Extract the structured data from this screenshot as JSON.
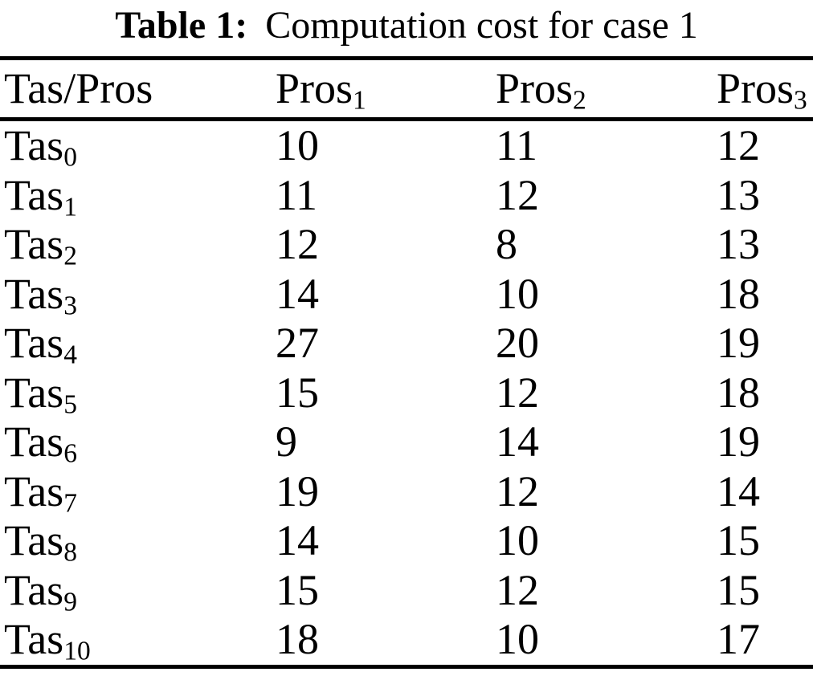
{
  "title": {
    "label": "Table 1:",
    "caption": "Computation cost for case 1"
  },
  "colors": {
    "text": "#000000",
    "background": "#ffffff",
    "rule": "#000000"
  },
  "table": {
    "columns": [
      {
        "base": "Tas/Pros",
        "sub": ""
      },
      {
        "base": "Pros",
        "sub": "1"
      },
      {
        "base": "Pros",
        "sub": "2"
      },
      {
        "base": "Pros",
        "sub": "3"
      }
    ],
    "rows": [
      {
        "base": "Tas",
        "sub": "0",
        "values": [
          "10",
          "11",
          "12"
        ]
      },
      {
        "base": "Tas",
        "sub": "1",
        "values": [
          "11",
          "12",
          "13"
        ]
      },
      {
        "base": "Tas",
        "sub": "2",
        "values": [
          "12",
          "8",
          "13"
        ]
      },
      {
        "base": "Tas",
        "sub": "3",
        "values": [
          "14",
          "10",
          "18"
        ]
      },
      {
        "base": "Tas",
        "sub": "4",
        "values": [
          "27",
          "20",
          "19"
        ]
      },
      {
        "base": "Tas",
        "sub": "5",
        "values": [
          "15",
          "12",
          "18"
        ]
      },
      {
        "base": "Tas",
        "sub": "6",
        "values": [
          "9",
          "14",
          "19"
        ]
      },
      {
        "base": "Tas",
        "sub": "7",
        "values": [
          "19",
          "12",
          "14"
        ]
      },
      {
        "base": "Tas",
        "sub": "8",
        "values": [
          "14",
          "10",
          "15"
        ]
      },
      {
        "base": "Tas",
        "sub": "9",
        "values": [
          "15",
          "12",
          "15"
        ]
      },
      {
        "base": "Tas",
        "sub": "10",
        "values": [
          "18",
          "10",
          "17"
        ]
      }
    ]
  }
}
